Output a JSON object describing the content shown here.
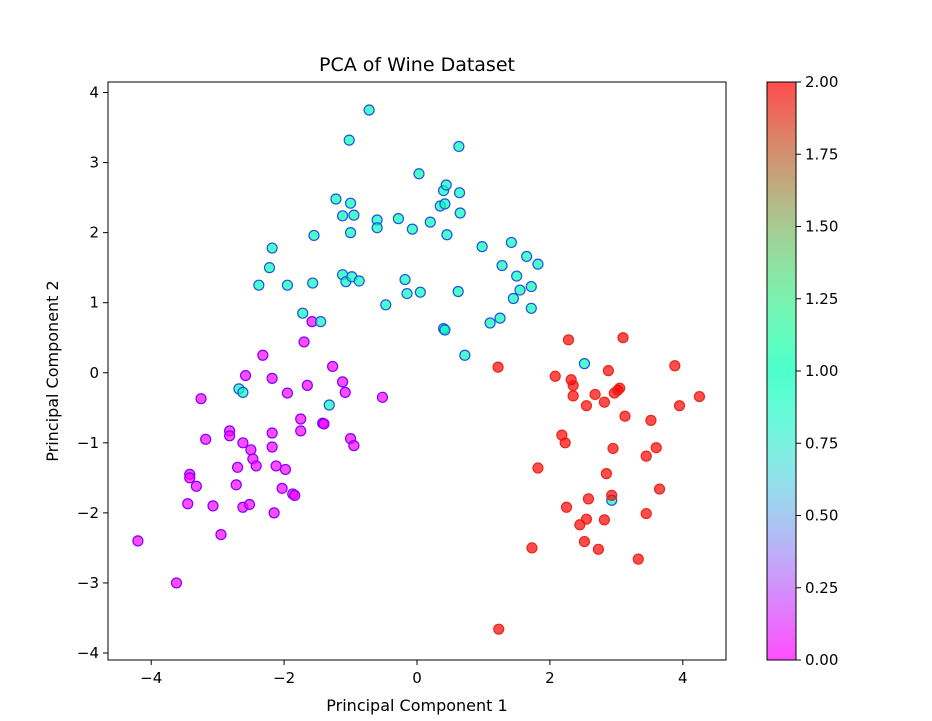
{
  "chart_data": {
    "type": "scatter",
    "title": "PCA of Wine Dataset",
    "xlabel": "Principal Component 1",
    "ylabel": "Principal Component 2",
    "xlim": [
      -4.65,
      4.65
    ],
    "ylim": [
      -4.1,
      4.15
    ],
    "xticks": [
      -4,
      -2,
      0,
      2,
      4
    ],
    "xtick_labels": [
      "−4",
      "−2",
      "0",
      "2",
      "4"
    ],
    "yticks": [
      -4,
      -3,
      -2,
      -1,
      0,
      1,
      2,
      3,
      4
    ],
    "ytick_labels": [
      "−4",
      "−3",
      "−2",
      "−1",
      "0",
      "1",
      "2",
      "3",
      "4"
    ],
    "grid": false,
    "colorbar": {
      "cmap": "rainbow",
      "range": [
        0,
        2
      ],
      "ticks": [
        0,
        0.25,
        0.5,
        0.75,
        1.0,
        1.25,
        1.5,
        1.75,
        2.0
      ],
      "tick_labels": [
        "0.00",
        "0.25",
        "0.50",
        "0.75",
        "1.00",
        "1.25",
        "1.50",
        "1.75",
        "2.00"
      ],
      "alpha": 0.7
    },
    "marker_edge_colors": {
      "0": "#8000ff",
      "1": "#2050e8",
      "2": "#e8281a"
    },
    "series": [
      {
        "class": 0,
        "points": [
          [
            -4.2,
            -2.4
          ],
          [
            -3.62,
            -3.0
          ],
          [
            -3.42,
            -1.45
          ],
          [
            -3.42,
            -1.5
          ],
          [
            -3.45,
            -1.87
          ],
          [
            -3.32,
            -1.62
          ],
          [
            -3.25,
            -0.37
          ],
          [
            -3.18,
            -0.95
          ],
          [
            -3.07,
            -1.9
          ],
          [
            -2.95,
            -2.31
          ],
          [
            -2.82,
            -0.83
          ],
          [
            -2.82,
            -0.9
          ],
          [
            -2.72,
            -1.6
          ],
          [
            -2.7,
            -1.35
          ],
          [
            -2.62,
            -1.0
          ],
          [
            -2.62,
            -1.92
          ],
          [
            -2.58,
            -0.04
          ],
          [
            -2.52,
            -1.88
          ],
          [
            -2.5,
            -1.1
          ],
          [
            -2.47,
            -1.23
          ],
          [
            -2.42,
            -1.33
          ],
          [
            -2.32,
            0.25
          ],
          [
            -2.18,
            -0.08
          ],
          [
            -2.18,
            -0.86
          ],
          [
            -2.18,
            -1.06
          ],
          [
            -2.15,
            -2.0
          ],
          [
            -2.12,
            -1.33
          ],
          [
            -2.03,
            -1.65
          ],
          [
            -1.98,
            -1.38
          ],
          [
            -1.95,
            -0.29
          ],
          [
            -1.87,
            -1.73
          ],
          [
            -1.84,
            -1.75
          ],
          [
            -1.75,
            -0.66
          ],
          [
            -1.75,
            -0.83
          ],
          [
            -1.7,
            0.44
          ],
          [
            -1.65,
            -0.18
          ],
          [
            -1.58,
            0.73
          ],
          [
            -1.42,
            -0.72
          ],
          [
            -1.4,
            -0.73
          ],
          [
            -1.27,
            0.09
          ],
          [
            -1.12,
            -0.13
          ],
          [
            -1.08,
            -0.28
          ],
          [
            -1.0,
            -0.94
          ],
          [
            -0.95,
            -1.04
          ],
          [
            -0.52,
            -0.35
          ]
        ]
      },
      {
        "class": 1,
        "points": [
          [
            -2.68,
            -0.23
          ],
          [
            -2.62,
            -0.28
          ],
          [
            -2.38,
            1.25
          ],
          [
            -2.22,
            1.5
          ],
          [
            -2.18,
            1.78
          ],
          [
            -1.95,
            1.25
          ],
          [
            -1.72,
            0.85
          ],
          [
            -1.55,
            1.96
          ],
          [
            -1.57,
            1.28
          ],
          [
            -1.45,
            0.73
          ],
          [
            -1.32,
            -0.46
          ],
          [
            -1.22,
            2.48
          ],
          [
            -1.12,
            2.24
          ],
          [
            -1.12,
            1.4
          ],
          [
            -1.07,
            1.3
          ],
          [
            -1.02,
            3.32
          ],
          [
            -1.0,
            2.42
          ],
          [
            -1.0,
            2.0
          ],
          [
            -0.98,
            1.37
          ],
          [
            -0.95,
            2.25
          ],
          [
            -0.87,
            1.31
          ],
          [
            -0.72,
            3.75
          ],
          [
            -0.6,
            2.18
          ],
          [
            -0.6,
            2.07
          ],
          [
            -0.47,
            0.97
          ],
          [
            -0.28,
            2.2
          ],
          [
            -0.18,
            1.33
          ],
          [
            -0.15,
            1.13
          ],
          [
            -0.07,
            2.05
          ],
          [
            0.03,
            2.84
          ],
          [
            0.05,
            1.15
          ],
          [
            0.2,
            2.15
          ],
          [
            0.35,
            2.38
          ],
          [
            0.4,
            2.6
          ],
          [
            0.42,
            2.41
          ],
          [
            0.44,
            2.68
          ],
          [
            0.45,
            1.97
          ],
          [
            0.4,
            0.63
          ],
          [
            0.42,
            0.61
          ],
          [
            0.63,
            3.23
          ],
          [
            0.64,
            2.57
          ],
          [
            0.65,
            2.28
          ],
          [
            0.62,
            1.16
          ],
          [
            0.72,
            0.25
          ],
          [
            0.98,
            1.8
          ],
          [
            1.1,
            0.71
          ],
          [
            1.25,
            0.78
          ],
          [
            1.28,
            1.53
          ],
          [
            1.42,
            1.86
          ],
          [
            1.45,
            1.06
          ],
          [
            1.5,
            1.38
          ],
          [
            1.55,
            1.18
          ],
          [
            1.65,
            1.66
          ],
          [
            1.72,
            1.23
          ],
          [
            1.72,
            0.92
          ],
          [
            1.82,
            1.55
          ],
          [
            2.52,
            0.13
          ],
          [
            2.93,
            -1.82
          ]
        ]
      },
      {
        "class": 2,
        "points": [
          [
            1.22,
            0.08
          ],
          [
            1.23,
            -3.66
          ],
          [
            1.73,
            -2.5
          ],
          [
            1.82,
            -1.36
          ],
          [
            2.08,
            -0.05
          ],
          [
            2.18,
            -0.89
          ],
          [
            2.23,
            -1.0
          ],
          [
            2.25,
            -1.92
          ],
          [
            2.28,
            0.47
          ],
          [
            2.32,
            -0.1
          ],
          [
            2.35,
            -0.18
          ],
          [
            2.35,
            -0.33
          ],
          [
            2.45,
            -2.17
          ],
          [
            2.52,
            -2.41
          ],
          [
            2.55,
            -2.09
          ],
          [
            2.55,
            -0.47
          ],
          [
            2.58,
            -1.8
          ],
          [
            2.68,
            -0.31
          ],
          [
            2.73,
            -2.52
          ],
          [
            2.82,
            -0.42
          ],
          [
            2.82,
            -2.1
          ],
          [
            2.85,
            -1.44
          ],
          [
            2.88,
            0.03
          ],
          [
            2.93,
            -1.75
          ],
          [
            2.95,
            -1.08
          ],
          [
            2.97,
            -0.29
          ],
          [
            3.02,
            -0.25
          ],
          [
            3.05,
            -0.22
          ],
          [
            3.1,
            0.5
          ],
          [
            3.13,
            -0.62
          ],
          [
            3.33,
            -2.66
          ],
          [
            3.45,
            -1.19
          ],
          [
            3.45,
            -2.01
          ],
          [
            3.52,
            -0.68
          ],
          [
            3.6,
            -1.07
          ],
          [
            3.65,
            -1.66
          ],
          [
            3.88,
            0.1
          ],
          [
            3.95,
            -0.47
          ],
          [
            4.25,
            -0.34
          ]
        ]
      }
    ]
  }
}
